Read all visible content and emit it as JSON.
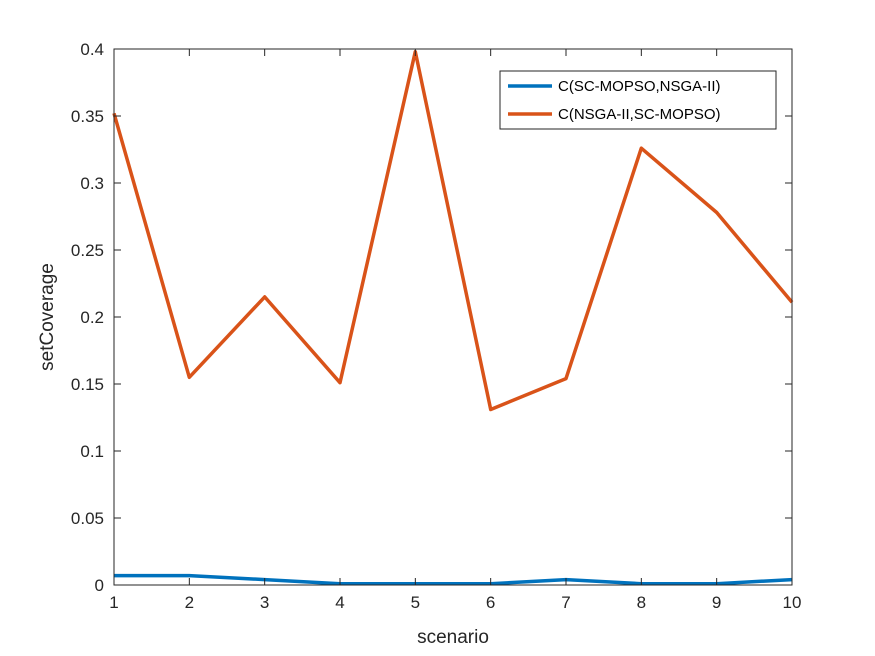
{
  "chart_data": {
    "type": "line",
    "xlabel": "scenario",
    "ylabel": "setCoverage",
    "xlim": [
      1,
      10
    ],
    "ylim": [
      0,
      0.4
    ],
    "xticks": [
      1,
      2,
      3,
      4,
      5,
      6,
      7,
      8,
      9,
      10
    ],
    "xtick_labels": [
      "1",
      "2",
      "3",
      "4",
      "5",
      "6",
      "7",
      "8",
      "9",
      "10"
    ],
    "yticks": [
      0,
      0.05,
      0.1,
      0.15,
      0.2,
      0.25,
      0.3,
      0.35,
      0.4
    ],
    "ytick_labels": [
      "0",
      "0.05",
      "0.1",
      "0.15",
      "0.2",
      "0.25",
      "0.3",
      "0.35",
      "0.4"
    ],
    "grid": false,
    "legend_position": "top-right",
    "x": [
      1,
      2,
      3,
      4,
      5,
      6,
      7,
      8,
      9,
      10
    ],
    "series": [
      {
        "name": "C(SC-MOPSO,NSGA-II)",
        "color": "#0072BD",
        "values": [
          0.007,
          0.007,
          0.004,
          0.001,
          0.001,
          0.001,
          0.004,
          0.001,
          0.001,
          0.004
        ]
      },
      {
        "name": "C(NSGA-II,SC-MOPSO)",
        "color": "#D95319",
        "values": [
          0.352,
          0.155,
          0.215,
          0.151,
          0.398,
          0.131,
          0.154,
          0.326,
          0.278,
          0.211
        ]
      }
    ]
  }
}
